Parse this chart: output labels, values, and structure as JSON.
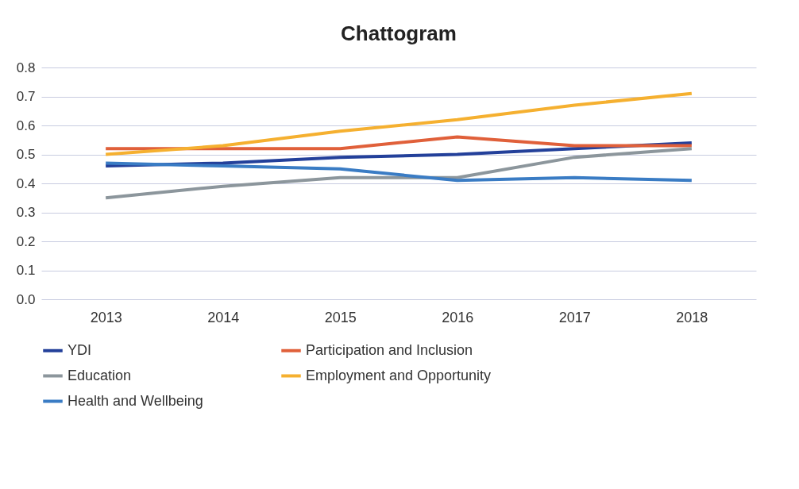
{
  "chart_data": {
    "type": "line",
    "title": "Chattogram",
    "categories": [
      "2013",
      "2014",
      "2015",
      "2016",
      "2017",
      "2018"
    ],
    "ylim": [
      0,
      0.8
    ],
    "yticks": [
      {
        "value": 0,
        "label": "0.0"
      },
      0.1,
      0.2,
      0.3,
      0.4,
      0.5,
      0.6,
      0.7,
      0.8
    ],
    "grid": "y",
    "legend": "bottom",
    "marker": "none",
    "series": [
      {
        "name": "YDI",
        "color": "#23409a",
        "values": [
          0.46,
          0.47,
          0.49,
          0.5,
          0.52,
          0.54
        ]
      },
      {
        "name": "Participation and Inclusion",
        "color": "#e0603a",
        "values": [
          0.52,
          0.52,
          0.52,
          0.56,
          0.53,
          0.53
        ]
      },
      {
        "name": "Education",
        "color": "#8c969c",
        "values": [
          0.35,
          0.39,
          0.42,
          0.42,
          0.49,
          0.52
        ]
      },
      {
        "name": "Employment and Opportunity",
        "color": "#f5b030",
        "values": [
          0.5,
          0.53,
          0.58,
          0.62,
          0.67,
          0.71
        ]
      },
      {
        "name": "Health and Wellbeing",
        "color": "#3a7cc4",
        "values": [
          0.47,
          0.46,
          0.45,
          0.41,
          0.42,
          0.41
        ]
      }
    ]
  }
}
